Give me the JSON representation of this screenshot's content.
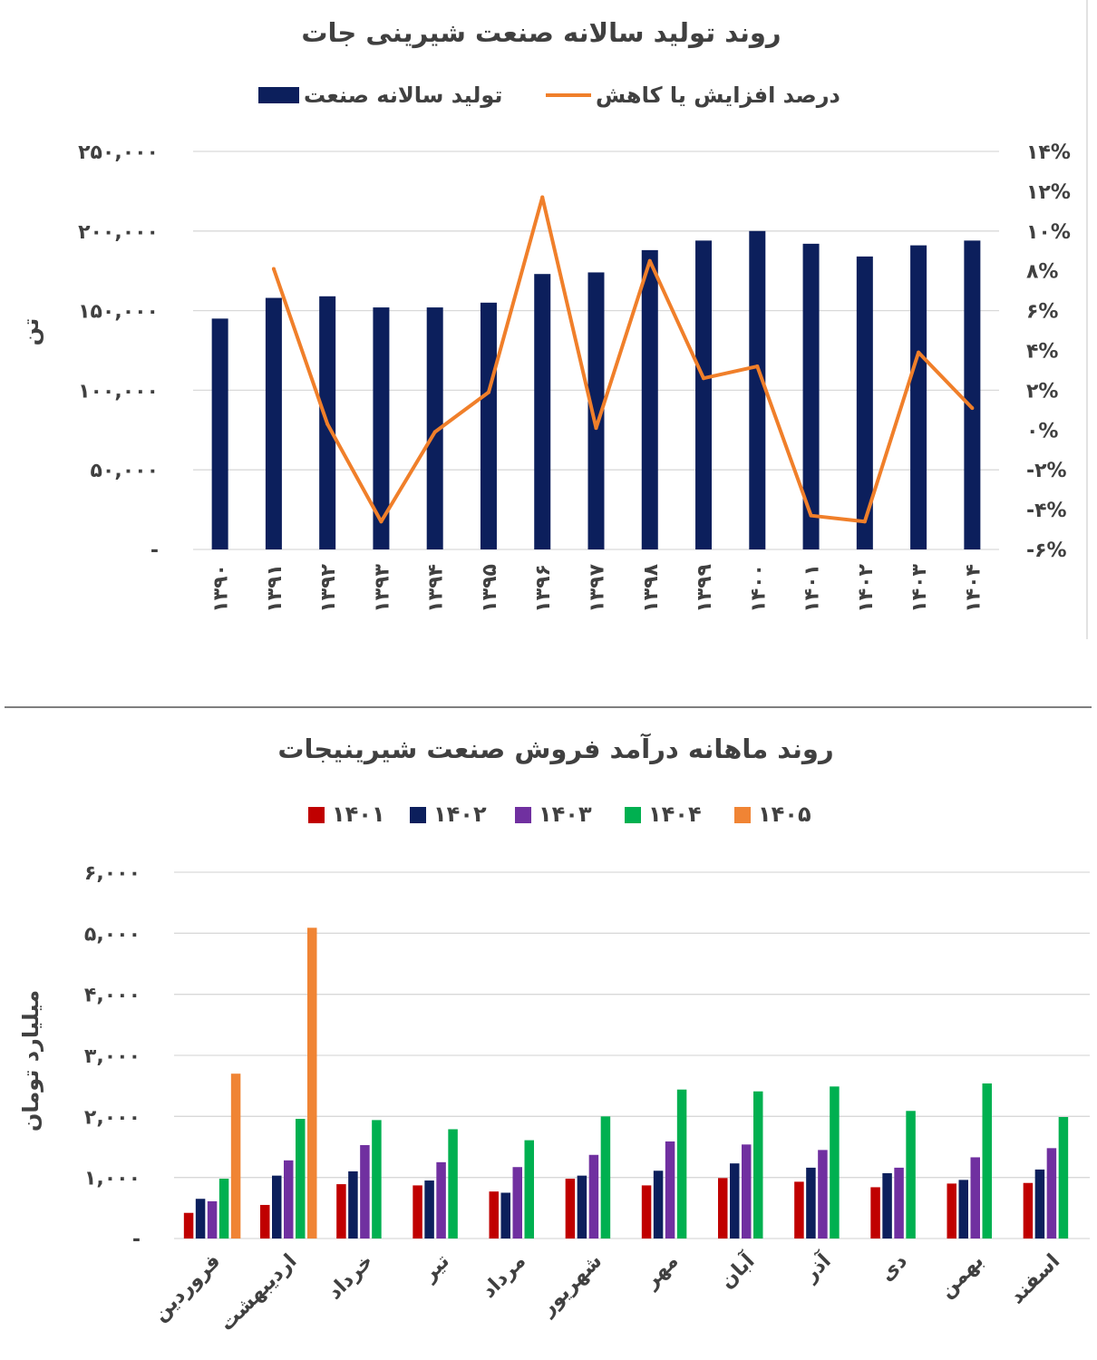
{
  "chart_data": [
    {
      "type": "bar+line",
      "title": "روند تولید سالانه صنعت شیرینی جات",
      "categories": [
        "۱۳۹۰",
        "۱۳۹۱",
        "۱۳۹۲",
        "۱۳۹۳",
        "۱۳۹۴",
        "۱۳۹۵",
        "۱۳۹۶",
        "۱۳۹۷",
        "۱۳۹۸",
        "۱۳۹۹",
        "۱۴۰۰",
        "۱۴۰۱",
        "۱۴۰۲",
        "۱۴۰۳",
        "۱۴۰۴"
      ],
      "series": [
        {
          "name": "تولید سالانه صنعت",
          "type": "bar",
          "axis": "left",
          "color": "#0c1f5c",
          "values": [
            145000,
            158000,
            159000,
            152000,
            152000,
            155000,
            173000,
            174000,
            188000,
            194000,
            200000,
            192000,
            184000,
            191000,
            194000
          ]
        },
        {
          "name": "درصد افزایش یا کاهش",
          "type": "line",
          "axis": "right",
          "color": "#f07f2a",
          "values": [
            null,
            8.1,
            0.3,
            -4.6,
            -0.1,
            1.9,
            11.7,
            0.1,
            8.5,
            2.6,
            3.2,
            -4.3,
            -4.6,
            3.9,
            1.1
          ]
        }
      ],
      "ylabel": "تن",
      "ylim": [
        0,
        250000
      ],
      "yticks": [
        "-",
        "۵۰,۰۰۰",
        "۱۰۰,۰۰۰",
        "۱۵۰,۰۰۰",
        "۲۰۰,۰۰۰",
        "۲۵۰,۰۰۰"
      ],
      "y2lim": [
        -6,
        14
      ],
      "y2ticks": [
        "-۶%",
        "-۴%",
        "-۲%",
        "۰%",
        "۲%",
        "۴%",
        "۶%",
        "۸%",
        "۱۰%",
        "۱۲%",
        "۱۴%"
      ],
      "grid": true,
      "legend_position": "top"
    },
    {
      "type": "bar",
      "title": "روند ماهانه درآمد فروش صنعت شیرینیجات",
      "categories": [
        "فروردین",
        "اردیبهشت",
        "خرداد",
        "تیر",
        "مرداد",
        "شهریور",
        "مهر",
        "آبان",
        "آذر",
        "دی",
        "بهمن",
        "اسفند"
      ],
      "series": [
        {
          "name": "۱۴۰۱",
          "color": "#c00000",
          "values": [
            420,
            550,
            890,
            870,
            770,
            980,
            870,
            990,
            930,
            840,
            900,
            910
          ]
        },
        {
          "name": "۱۴۰۲",
          "color": "#0c1f5c",
          "values": [
            650,
            1030,
            1100,
            950,
            750,
            1030,
            1110,
            1230,
            1160,
            1070,
            960,
            1130
          ]
        },
        {
          "name": "۱۴۰۳",
          "color": "#7030a0",
          "values": [
            610,
            1280,
            1530,
            1250,
            1170,
            1370,
            1590,
            1540,
            1450,
            1160,
            1330,
            1480
          ]
        },
        {
          "name": "۱۴۰۴",
          "color": "#00b050",
          "values": [
            980,
            1960,
            1940,
            1790,
            1610,
            2000,
            2440,
            2410,
            2490,
            2090,
            2540,
            1990
          ]
        },
        {
          "name": "۱۴۰۵",
          "color": "#f08434",
          "values": [
            2700,
            5090,
            null,
            null,
            null,
            null,
            null,
            null,
            null,
            null,
            null,
            null
          ]
        }
      ],
      "ylabel": "میلیارد تومان",
      "ylim": [
        0,
        6000
      ],
      "yticks": [
        "-",
        "۱,۰۰۰",
        "۲,۰۰۰",
        "۳,۰۰۰",
        "۴,۰۰۰",
        "۵,۰۰۰",
        "۶,۰۰۰"
      ],
      "grid": true,
      "legend_position": "top"
    }
  ]
}
